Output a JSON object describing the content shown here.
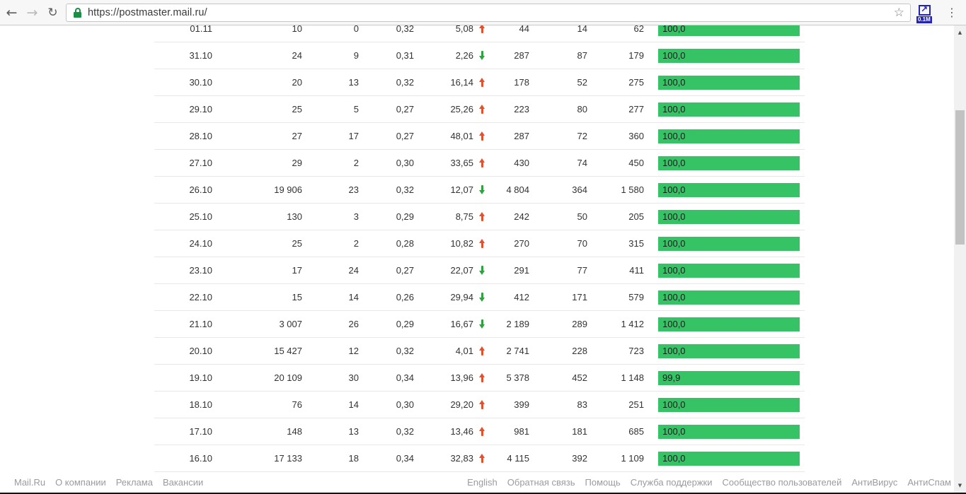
{
  "browser": {
    "url": "https://postmaster.mail.ru/",
    "back_icon": "←",
    "forward_icon": "→",
    "reload_icon": "↻",
    "star_icon": "☆",
    "extension_arrow_icon": "↗",
    "extension_badge": "0.1M",
    "menu_icon": "⋮"
  },
  "scrollbar": {
    "up_icon": "▲",
    "down_icon": "▼"
  },
  "table": {
    "rows": [
      {
        "date": "01.11",
        "c2": "10",
        "c3": "0",
        "c4": "0,32",
        "c5": "5,08",
        "trend": "up",
        "c6": "44",
        "c7": "14",
        "c8": "62",
        "bar_label": "100,0",
        "bar_pct": 100.0
      },
      {
        "date": "31.10",
        "c2": "24",
        "c3": "9",
        "c4": "0,31",
        "c5": "2,26",
        "trend": "down",
        "c6": "287",
        "c7": "87",
        "c8": "179",
        "bar_label": "100,0",
        "bar_pct": 100.0
      },
      {
        "date": "30.10",
        "c2": "20",
        "c3": "13",
        "c4": "0,32",
        "c5": "16,14",
        "trend": "up",
        "c6": "178",
        "c7": "52",
        "c8": "275",
        "bar_label": "100,0",
        "bar_pct": 100.0
      },
      {
        "date": "29.10",
        "c2": "25",
        "c3": "5",
        "c4": "0,27",
        "c5": "25,26",
        "trend": "up",
        "c6": "223",
        "c7": "80",
        "c8": "277",
        "bar_label": "100,0",
        "bar_pct": 100.0
      },
      {
        "date": "28.10",
        "c2": "27",
        "c3": "17",
        "c4": "0,27",
        "c5": "48,01",
        "trend": "up",
        "c6": "287",
        "c7": "72",
        "c8": "360",
        "bar_label": "100,0",
        "bar_pct": 100.0
      },
      {
        "date": "27.10",
        "c2": "29",
        "c3": "2",
        "c4": "0,30",
        "c5": "33,65",
        "trend": "up",
        "c6": "430",
        "c7": "74",
        "c8": "450",
        "bar_label": "100,0",
        "bar_pct": 100.0
      },
      {
        "date": "26.10",
        "c2": "19 906",
        "c3": "23",
        "c4": "0,32",
        "c5": "12,07",
        "trend": "down",
        "c6": "4 804",
        "c7": "364",
        "c8": "1 580",
        "bar_label": "100,0",
        "bar_pct": 100.0
      },
      {
        "date": "25.10",
        "c2": "130",
        "c3": "3",
        "c4": "0,29",
        "c5": "8,75",
        "trend": "up",
        "c6": "242",
        "c7": "50",
        "c8": "205",
        "bar_label": "100,0",
        "bar_pct": 100.0
      },
      {
        "date": "24.10",
        "c2": "25",
        "c3": "2",
        "c4": "0,28",
        "c5": "10,82",
        "trend": "up",
        "c6": "270",
        "c7": "70",
        "c8": "315",
        "bar_label": "100,0",
        "bar_pct": 100.0
      },
      {
        "date": "23.10",
        "c2": "17",
        "c3": "24",
        "c4": "0,27",
        "c5": "22,07",
        "trend": "down",
        "c6": "291",
        "c7": "77",
        "c8": "411",
        "bar_label": "100,0",
        "bar_pct": 100.0
      },
      {
        "date": "22.10",
        "c2": "15",
        "c3": "14",
        "c4": "0,26",
        "c5": "29,94",
        "trend": "down",
        "c6": "412",
        "c7": "171",
        "c8": "579",
        "bar_label": "100,0",
        "bar_pct": 100.0
      },
      {
        "date": "21.10",
        "c2": "3 007",
        "c3": "26",
        "c4": "0,29",
        "c5": "16,67",
        "trend": "down",
        "c6": "2 189",
        "c7": "289",
        "c8": "1 412",
        "bar_label": "100,0",
        "bar_pct": 100.0
      },
      {
        "date": "20.10",
        "c2": "15 427",
        "c3": "12",
        "c4": "0,32",
        "c5": "4,01",
        "trend": "up",
        "c6": "2 741",
        "c7": "228",
        "c8": "723",
        "bar_label": "100,0",
        "bar_pct": 100.0
      },
      {
        "date": "19.10",
        "c2": "20 109",
        "c3": "30",
        "c4": "0,34",
        "c5": "13,96",
        "trend": "up",
        "c6": "5 378",
        "c7": "452",
        "c8": "1 148",
        "bar_label": "99,9",
        "bar_pct": 99.9
      },
      {
        "date": "18.10",
        "c2": "76",
        "c3": "14",
        "c4": "0,30",
        "c5": "29,20",
        "trend": "up",
        "c6": "399",
        "c7": "83",
        "c8": "251",
        "bar_label": "100,0",
        "bar_pct": 100.0
      },
      {
        "date": "17.10",
        "c2": "148",
        "c3": "13",
        "c4": "0,32",
        "c5": "13,46",
        "trend": "up",
        "c6": "981",
        "c7": "181",
        "c8": "685",
        "bar_label": "100,0",
        "bar_pct": 100.0
      },
      {
        "date": "16.10",
        "c2": "17 133",
        "c3": "18",
        "c4": "0,34",
        "c5": "32,83",
        "trend": "up",
        "c6": "4 115",
        "c7": "392",
        "c8": "1 109",
        "bar_label": "100,0",
        "bar_pct": 100.0
      }
    ]
  },
  "footer": {
    "left_links": [
      "Mail.Ru",
      "О компании",
      "Реклама",
      "Вакансии"
    ],
    "right_links": [
      "English",
      "Обратная связь",
      "Помощь",
      "Служба поддержки",
      "Сообщество пользователей",
      "АнтиВирус",
      "АнтиСпам"
    ]
  },
  "colors": {
    "bar_green": "#36c366",
    "arrow_up_red": "#e2512c",
    "arrow_down_green": "#2aa53d",
    "extension_blue": "#2424b4"
  }
}
